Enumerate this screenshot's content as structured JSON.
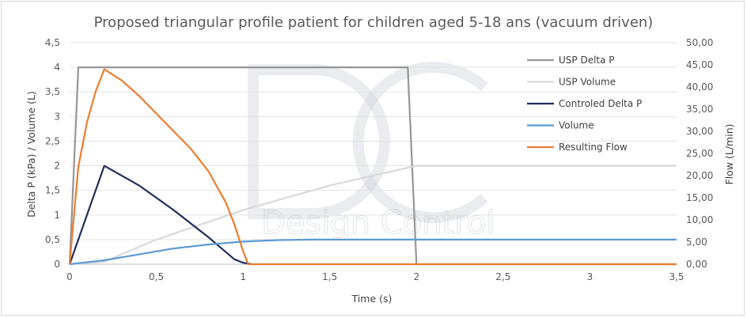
{
  "chart_data": {
    "type": "line",
    "title": "Proposed triangular profile patient for children aged 5-18 ans (vacuum driven)",
    "xlabel": "Time (s)",
    "ylabel_left": "Delta P (kPa) / Volume (L)",
    "ylabel_right": "Flow (L/min)",
    "xlim": [
      0,
      3.5
    ],
    "ylim_left": [
      0,
      4.5
    ],
    "ylim_right": [
      0,
      50
    ],
    "x_ticks": [
      "0",
      "0,5",
      "1",
      "1,5",
      "2",
      "2,5",
      "3",
      "3,5"
    ],
    "y_left_ticks": [
      "0",
      "0,5",
      "1",
      "1,5",
      "2",
      "2,5",
      "3",
      "3,5",
      "4",
      "4,5"
    ],
    "y_right_ticks": [
      "0,00",
      "5,00",
      "10,00",
      "15,00",
      "20,00",
      "25,00",
      "30,00",
      "35,00",
      "40,00",
      "45,00",
      "50,00"
    ],
    "grid": "horizontal",
    "legend_position": "right",
    "series": [
      {
        "name": "USP Delta P",
        "axis": "left",
        "color": "#969696",
        "x": [
          0,
          0.05,
          1.95,
          2.0,
          3.5
        ],
        "y": [
          0,
          4,
          4,
          0,
          0
        ]
      },
      {
        "name": "USP Volume",
        "axis": "left",
        "color": "#d9d9d9",
        "x": [
          0,
          0.2,
          0.5,
          1.0,
          1.5,
          2.0,
          3.5
        ],
        "y": [
          0,
          0.05,
          0.5,
          1.1,
          1.6,
          2.0,
          2.0
        ]
      },
      {
        "name": "Controled Delta P",
        "axis": "left",
        "color": "#1f2d5c",
        "x": [
          0,
          0.2,
          0.4,
          0.6,
          0.8,
          0.95,
          1.0,
          1.05
        ],
        "y": [
          0,
          2.0,
          1.6,
          1.1,
          0.55,
          0.1,
          0.03,
          0
        ]
      },
      {
        "name": "Volume",
        "axis": "left",
        "color": "#5b9bd5",
        "x": [
          0,
          0.2,
          0.4,
          0.6,
          0.8,
          1.0,
          1.2,
          1.4,
          2.0,
          3.5
        ],
        "y": [
          0,
          0.08,
          0.2,
          0.32,
          0.4,
          0.46,
          0.49,
          0.5,
          0.5,
          0.5
        ]
      },
      {
        "name": "Resulting Flow",
        "axis": "right",
        "color": "#ed7d31",
        "x": [
          0,
          0.05,
          0.1,
          0.15,
          0.2,
          0.3,
          0.4,
          0.5,
          0.6,
          0.7,
          0.8,
          0.9,
          0.95,
          1.0,
          1.03,
          1.5,
          2.0,
          3.5
        ],
        "y": [
          0,
          22,
          32,
          39,
          44,
          41.5,
          38,
          34,
          30,
          26,
          21,
          14,
          9,
          3,
          0,
          0,
          0,
          0
        ]
      }
    ]
  },
  "watermark": {
    "letters": "DC",
    "text": "Design Control"
  }
}
